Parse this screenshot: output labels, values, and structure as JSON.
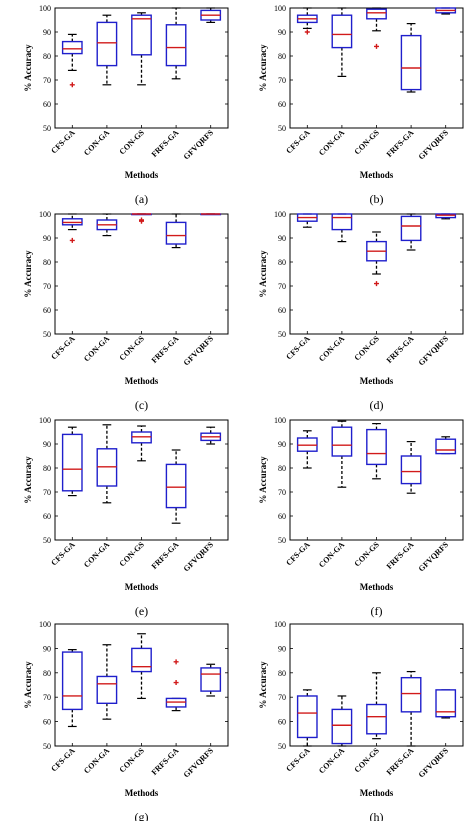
{
  "chart_data": [
    {
      "panel_label": "(a)",
      "type": "boxplot",
      "ylabel": "% Accuracy",
      "xlabel": "Methods",
      "ylim": [
        50,
        100
      ],
      "yticks": [
        "50",
        "60",
        "70",
        "80",
        "90",
        "100"
      ],
      "categories": [
        "CFS-GA",
        "CON-GA",
        "CON-GS",
        "FRFS-GA",
        "GFVQRFS"
      ],
      "boxes": [
        {
          "q1": 81,
          "median": 83,
          "q3": 86,
          "whisker_low": 74,
          "whisker_high": 89,
          "outliers": [
            68
          ]
        },
        {
          "q1": 76,
          "median": 85.5,
          "q3": 94,
          "whisker_low": 68,
          "whisker_high": 97,
          "outliers": []
        },
        {
          "q1": 80.5,
          "median": 95.5,
          "q3": 97,
          "whisker_low": 68,
          "whisker_high": 98,
          "outliers": []
        },
        {
          "q1": 76,
          "median": 83.5,
          "q3": 93,
          "whisker_low": 70.5,
          "whisker_high": 100,
          "outliers": []
        },
        {
          "q1": 95,
          "median": 97,
          "q3": 99,
          "whisker_low": 94,
          "whisker_high": 100,
          "outliers": []
        }
      ]
    },
    {
      "panel_label": "(b)",
      "type": "boxplot",
      "ylabel": "% Accuracy",
      "xlabel": "Methods",
      "ylim": [
        50,
        100
      ],
      "yticks": [
        "50",
        "60",
        "70",
        "80",
        "90",
        "100"
      ],
      "categories": [
        "CFS-GA",
        "CON-GA",
        "CON-GS",
        "FRFS-GA",
        "GFVQRFS"
      ],
      "boxes": [
        {
          "q1": 94,
          "median": 95.5,
          "q3": 97,
          "whisker_low": 91.5,
          "whisker_high": 100,
          "outliers": [
            90
          ]
        },
        {
          "q1": 83.5,
          "median": 89,
          "q3": 97,
          "whisker_low": 71.5,
          "whisker_high": 100,
          "outliers": []
        },
        {
          "q1": 95.5,
          "median": 98,
          "q3": 99.5,
          "whisker_low": 90.5,
          "whisker_high": 100,
          "outliers": [
            84
          ]
        },
        {
          "q1": 66,
          "median": 75,
          "q3": 88.5,
          "whisker_low": 65,
          "whisker_high": 93.5,
          "outliers": []
        },
        {
          "q1": 98,
          "median": 99,
          "q3": 100,
          "whisker_low": 97.5,
          "whisker_high": 100,
          "outliers": []
        }
      ]
    },
    {
      "panel_label": "(c)",
      "type": "boxplot",
      "ylabel": "% Accuracy",
      "xlabel": "Methods",
      "ylim": [
        50,
        100
      ],
      "yticks": [
        "50",
        "60",
        "70",
        "80",
        "90",
        "100"
      ],
      "categories": [
        "CFS-GA",
        "CON-GA",
        "CON-GS",
        "FRFS-GA",
        "GFVQRFS"
      ],
      "boxes": [
        {
          "q1": 95.5,
          "median": 96.5,
          "q3": 98,
          "whisker_low": 93.5,
          "whisker_high": 100,
          "outliers": [
            89
          ]
        },
        {
          "q1": 93.5,
          "median": 95.5,
          "q3": 97.5,
          "whisker_low": 91,
          "whisker_high": 100,
          "outliers": []
        },
        {
          "q1": 100,
          "median": 100,
          "q3": 100,
          "whisker_low": 100,
          "whisker_high": 100,
          "outliers": [
            97.5,
            97
          ]
        },
        {
          "q1": 87.5,
          "median": 91,
          "q3": 96.5,
          "whisker_low": 86,
          "whisker_high": 100,
          "outliers": []
        },
        {
          "q1": 100,
          "median": 100,
          "q3": 100,
          "whisker_low": 100,
          "whisker_high": 100,
          "outliers": []
        }
      ]
    },
    {
      "panel_label": "(d)",
      "type": "boxplot",
      "ylabel": "% Accuracy",
      "xlabel": "Methods",
      "ylim": [
        50,
        100
      ],
      "yticks": [
        "50",
        "60",
        "70",
        "80",
        "90",
        "100"
      ],
      "categories": [
        "CFS-GA",
        "CON-GA",
        "CON-GS",
        "FRFS-GA",
        "GFVQRFS"
      ],
      "boxes": [
        {
          "q1": 97,
          "median": 98.5,
          "q3": 100,
          "whisker_low": 94.5,
          "whisker_high": 100,
          "outliers": []
        },
        {
          "q1": 93.5,
          "median": 98.5,
          "q3": 100,
          "whisker_low": 88.5,
          "whisker_high": 100,
          "outliers": []
        },
        {
          "q1": 80.5,
          "median": 84.5,
          "q3": 88.5,
          "whisker_low": 75,
          "whisker_high": 92.5,
          "outliers": [
            71
          ]
        },
        {
          "q1": 89,
          "median": 95,
          "q3": 99,
          "whisker_low": 85,
          "whisker_high": 100,
          "outliers": []
        },
        {
          "q1": 98.5,
          "median": 99.5,
          "q3": 100,
          "whisker_low": 98,
          "whisker_high": 100,
          "outliers": []
        }
      ]
    },
    {
      "panel_label": "(e)",
      "type": "boxplot",
      "ylabel": "% Accuracy",
      "xlabel": "Methods",
      "ylim": [
        50,
        100
      ],
      "yticks": [
        "50",
        "60",
        "70",
        "80",
        "90",
        "100"
      ],
      "categories": [
        "CFS-GA",
        "CON-GA",
        "CON-GS",
        "FRFS-GA",
        "GFVQRFS"
      ],
      "boxes": [
        {
          "q1": 70.5,
          "median": 79.5,
          "q3": 94,
          "whisker_low": 68.5,
          "whisker_high": 97,
          "outliers": []
        },
        {
          "q1": 72.5,
          "median": 80.5,
          "q3": 88,
          "whisker_low": 65.5,
          "whisker_high": 98,
          "outliers": []
        },
        {
          "q1": 90.5,
          "median": 93,
          "q3": 95,
          "whisker_low": 83,
          "whisker_high": 97.5,
          "outliers": []
        },
        {
          "q1": 63.5,
          "median": 72,
          "q3": 81.5,
          "whisker_low": 57,
          "whisker_high": 87.5,
          "outliers": []
        },
        {
          "q1": 91.5,
          "median": 93,
          "q3": 94.5,
          "whisker_low": 90,
          "whisker_high": 97,
          "outliers": []
        }
      ]
    },
    {
      "panel_label": "(f)",
      "type": "boxplot",
      "ylabel": "% Accuracy",
      "xlabel": "Methods",
      "ylim": [
        50,
        100
      ],
      "yticks": [
        "50",
        "60",
        "70",
        "80",
        "90",
        "100"
      ],
      "categories": [
        "CFS-GA",
        "CON-GA",
        "CON-GS",
        "FRFS-GA",
        "GFVQRFS"
      ],
      "boxes": [
        {
          "q1": 87,
          "median": 89.5,
          "q3": 92.5,
          "whisker_low": 80,
          "whisker_high": 95.5,
          "outliers": []
        },
        {
          "q1": 85,
          "median": 89.5,
          "q3": 97,
          "whisker_low": 72,
          "whisker_high": 99.5,
          "outliers": []
        },
        {
          "q1": 81.5,
          "median": 86,
          "q3": 96,
          "whisker_low": 75.5,
          "whisker_high": 98.5,
          "outliers": []
        },
        {
          "q1": 73.5,
          "median": 78.5,
          "q3": 85,
          "whisker_low": 69.5,
          "whisker_high": 91,
          "outliers": []
        },
        {
          "q1": 86,
          "median": 87.5,
          "q3": 92,
          "whisker_low": 86,
          "whisker_high": 93,
          "outliers": []
        }
      ]
    },
    {
      "panel_label": "(g)",
      "type": "boxplot",
      "ylabel": "% Accuracy",
      "xlabel": "Methods",
      "ylim": [
        50,
        100
      ],
      "yticks": [
        "50",
        "60",
        "70",
        "80",
        "90",
        "100"
      ],
      "categories": [
        "CFS-GA",
        "CON-GA",
        "CON-GS",
        "FRFS-GA",
        "GFVQRFS"
      ],
      "boxes": [
        {
          "q1": 65,
          "median": 70.5,
          "q3": 88.5,
          "whisker_low": 58,
          "whisker_high": 89.5,
          "outliers": []
        },
        {
          "q1": 67.5,
          "median": 75.5,
          "q3": 78.5,
          "whisker_low": 61,
          "whisker_high": 91.5,
          "outliers": []
        },
        {
          "q1": 80.5,
          "median": 82.5,
          "q3": 90,
          "whisker_low": 69.5,
          "whisker_high": 96,
          "outliers": []
        },
        {
          "q1": 66,
          "median": 68,
          "q3": 69.5,
          "whisker_low": 64.5,
          "whisker_high": 69.5,
          "outliers": [
            84.5,
            76
          ]
        },
        {
          "q1": 72.5,
          "median": 79.5,
          "q3": 82,
          "whisker_low": 70.5,
          "whisker_high": 83.5,
          "outliers": []
        }
      ]
    },
    {
      "panel_label": "(h)",
      "type": "boxplot",
      "ylabel": "% Accuracy",
      "xlabel": "Methods",
      "ylim": [
        50,
        100
      ],
      "yticks": [
        "50",
        "60",
        "70",
        "80",
        "90",
        "100"
      ],
      "categories": [
        "CFS-GA",
        "CON-GA",
        "CON-GS",
        "FRFS-GA",
        "GFVQRFS"
      ],
      "boxes": [
        {
          "q1": 53.5,
          "median": 63.5,
          "q3": 70.5,
          "whisker_low": 50,
          "whisker_high": 73,
          "outliers": []
        },
        {
          "q1": 51,
          "median": 58.5,
          "q3": 65,
          "whisker_low": 50,
          "whisker_high": 70.5,
          "outliers": []
        },
        {
          "q1": 55,
          "median": 62,
          "q3": 67,
          "whisker_low": 53,
          "whisker_high": 80,
          "outliers": []
        },
        {
          "q1": 64,
          "median": 71.5,
          "q3": 78,
          "whisker_low": 50,
          "whisker_high": 80.5,
          "outliers": []
        },
        {
          "q1": 62,
          "median": 64,
          "q3": 73,
          "whisker_low": 61.5,
          "whisker_high": 73,
          "outliers": []
        }
      ]
    }
  ]
}
